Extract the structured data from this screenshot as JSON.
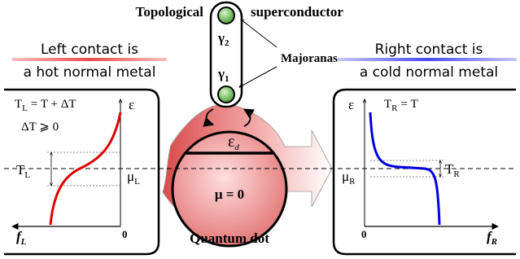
{
  "title": {
    "left": "Topological",
    "right": "superconductor"
  },
  "majoranas": {
    "label": "Majoranas",
    "gamma_top": {
      "symbol": "γ",
      "sub": "2"
    },
    "gamma_bottom": {
      "symbol": "γ",
      "sub": "1"
    }
  },
  "left_contact": {
    "line1": "Left contact is",
    "line2": "a hot normal metal",
    "temperature": {
      "main": "T",
      "sub": "L",
      "rest": "= T + ΔT"
    },
    "condition": "ΔT ⩾ 0",
    "energy_axis": "ε",
    "width_label": {
      "main": "T",
      "sub": "L"
    },
    "chemical_potential": {
      "main": "μ",
      "sub": "L"
    },
    "distribution_axis": {
      "main": "f",
      "sub": "L"
    },
    "origin": "0"
  },
  "right_contact": {
    "line1": "Right contact is",
    "line2": "a cold normal metal",
    "temperature": {
      "main": "T",
      "sub": "R",
      "rest": "= T"
    },
    "energy_axis": "ε",
    "width_label": {
      "main": "T",
      "sub": "R"
    },
    "chemical_potential": {
      "main": "μ",
      "sub": "R"
    },
    "distribution_axis": {
      "main": "f",
      "sub": "R"
    },
    "origin": "0"
  },
  "quantum_dot": {
    "level": {
      "main": "ε",
      "sub": "d"
    },
    "chemical_potential": "μ = 0",
    "label": "Quantum dot"
  }
}
